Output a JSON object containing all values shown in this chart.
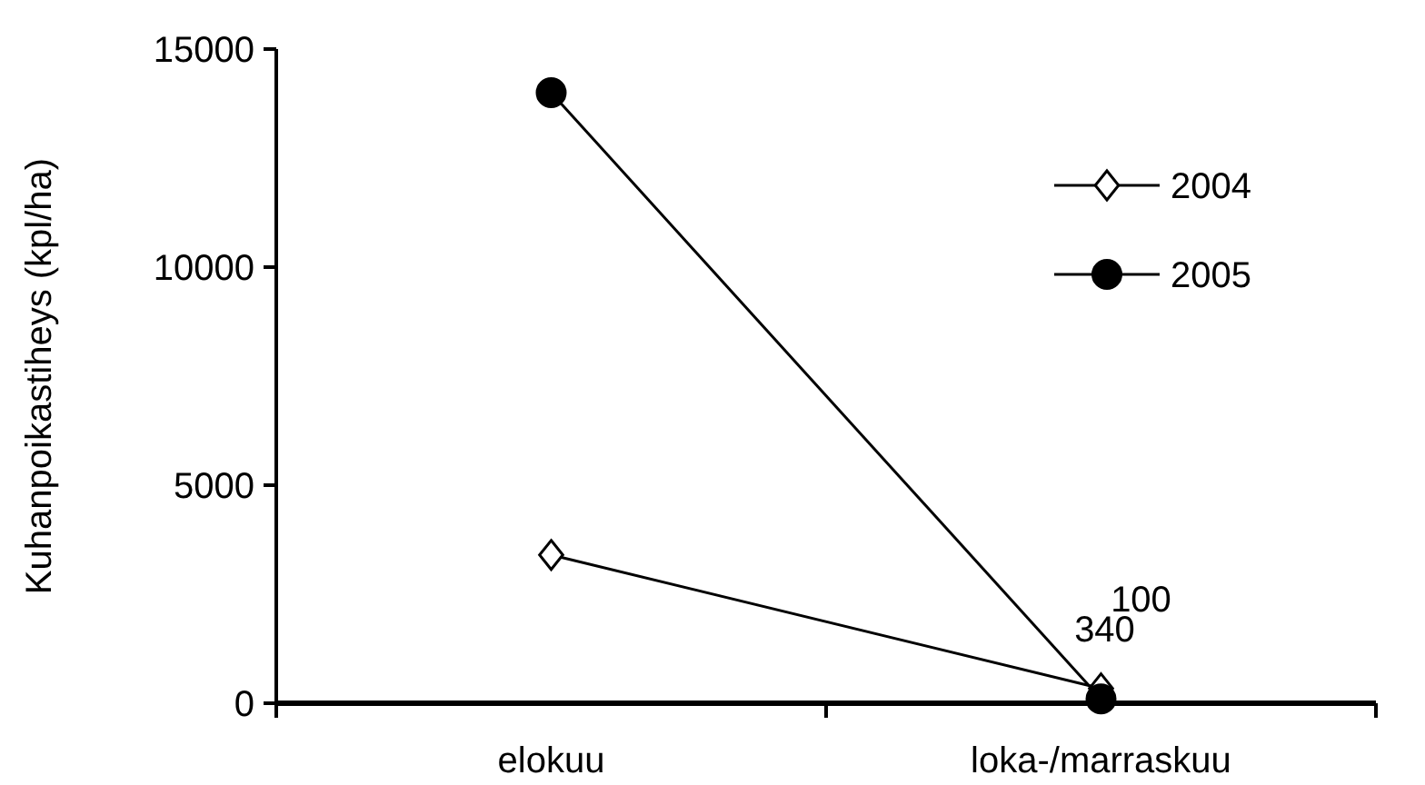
{
  "chart_data": {
    "type": "line",
    "ylabel": "Kuhanpoikastiheys (kpl/ha)",
    "categories": [
      "elokuu",
      "loka-/marraskuu"
    ],
    "ylim": [
      0,
      15000
    ],
    "yticks": [
      0,
      5000,
      10000,
      15000
    ],
    "grid": false,
    "legend": "top right",
    "series": [
      {
        "name": "2004",
        "color": "#000000",
        "marker": "diamond",
        "values": [
          3400,
          340
        ],
        "value_labels": [
          null,
          "340"
        ]
      },
      {
        "name": "2005",
        "color": "#000000",
        "marker": "circle",
        "values": [
          14000,
          100
        ],
        "value_labels": [
          null,
          "100"
        ]
      }
    ]
  }
}
